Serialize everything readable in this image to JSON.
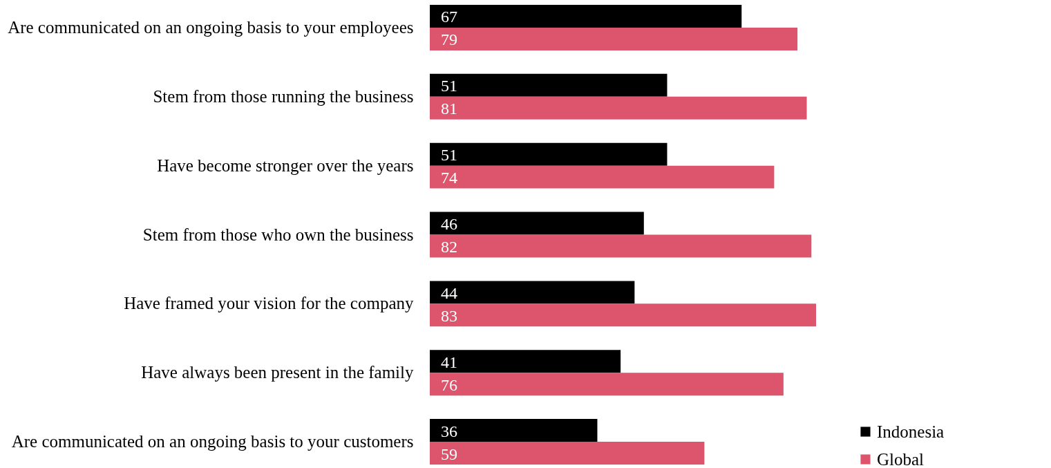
{
  "chart_data": {
    "type": "bar",
    "orientation": "horizontal",
    "categories": [
      "Are communicated on an ongoing basis to your employees",
      "Stem from those running the business",
      "Have become stronger over the years",
      "Stem from those who own the business",
      "Have framed your vision for the company",
      "Have always been present in the family",
      "Are communicated on an ongoing basis to your customers"
    ],
    "series": [
      {
        "name": "Indonesia",
        "color": "#000000",
        "values": [
          67,
          51,
          51,
          46,
          44,
          41,
          36
        ]
      },
      {
        "name": "Global",
        "color": "#dc556d",
        "values": [
          79,
          81,
          74,
          82,
          83,
          76,
          59
        ]
      }
    ],
    "data_labels": true,
    "legend": "bottom right",
    "grid": false
  }
}
